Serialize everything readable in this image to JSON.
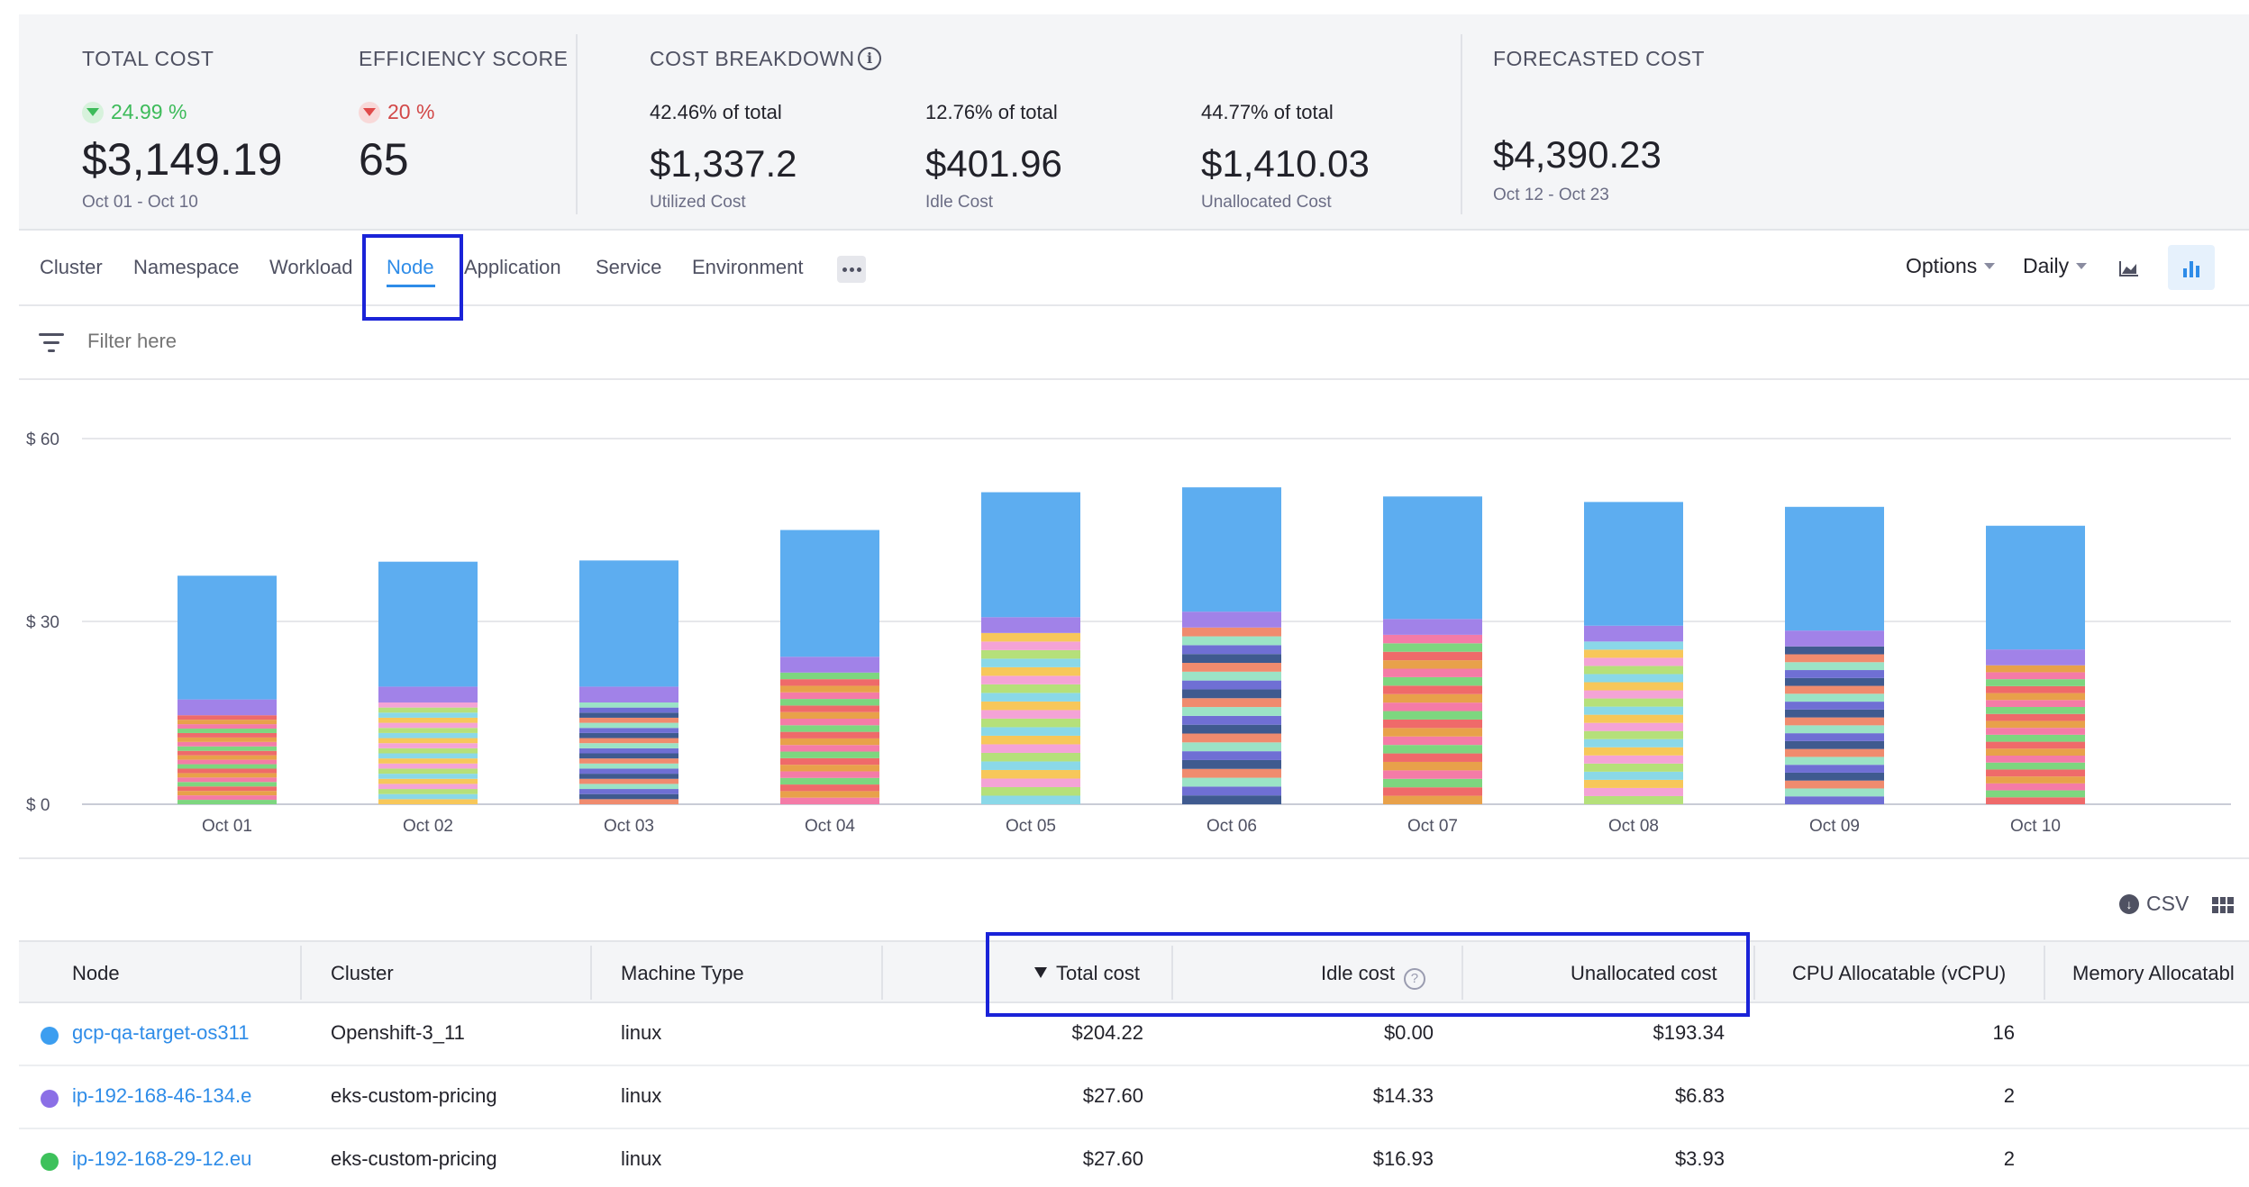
{
  "summary": {
    "total_cost": {
      "label": "TOTAL COST",
      "trend": "24.99 %",
      "trend_dir": "down",
      "value": "$3,149.19",
      "range": "Oct 01 - Oct 10"
    },
    "efficiency": {
      "label": "EFFICIENCY SCORE",
      "trend": "20 %",
      "trend_dir": "down",
      "value": "65"
    },
    "breakdown": {
      "label": "COST BREAKDOWN",
      "items": [
        {
          "pct": "42.46% of total",
          "value": "$1,337.2",
          "name": "Utilized Cost"
        },
        {
          "pct": "12.76% of total",
          "value": "$401.96",
          "name": "Idle Cost"
        },
        {
          "pct": "44.77% of total",
          "value": "$1,410.03",
          "name": "Unallocated Cost"
        }
      ]
    },
    "forecast": {
      "label": "FORECASTED COST",
      "value": "$4,390.23",
      "range": "Oct 12 - Oct 23"
    }
  },
  "tabs": [
    "Cluster",
    "Namespace",
    "Workload",
    "Node",
    "Application",
    "Service",
    "Environment"
  ],
  "active_tab": "Node",
  "controls": {
    "options": "Options",
    "period": "Daily"
  },
  "filter": {
    "placeholder": "Filter here"
  },
  "chart_data": {
    "type": "bar",
    "stacked": true,
    "categories": [
      "Oct 01",
      "Oct 02",
      "Oct 03",
      "Oct 04",
      "Oct 05",
      "Oct 06",
      "Oct 07",
      "Oct 08",
      "Oct 09",
      "Oct 10"
    ],
    "totals": [
      37.5,
      39.8,
      40.0,
      45.0,
      51.2,
      52.0,
      50.5,
      49.6,
      48.8,
      45.7
    ],
    "top_segment": [
      20.3,
      20.5,
      20.7,
      20.8,
      20.5,
      20.4,
      20.1,
      20.3,
      20.3,
      20.3
    ],
    "second_segment": [
      2.6,
      2.6,
      2.6,
      2.6,
      2.6,
      2.6,
      2.6,
      2.6,
      2.6,
      2.6
    ],
    "ylim": [
      0,
      60
    ],
    "yticks": [
      "$ 0",
      "$ 30",
      "$ 60"
    ],
    "tick_values": [
      0,
      30,
      60
    ],
    "colors": [
      "#5dadf0",
      "#a182e8",
      "#7dd67f",
      "#f7c75a",
      "#f08b6e",
      "#f47ba7",
      "#8ad8e8",
      "#3f5a8f",
      "#e8a14a",
      "#b5e07a",
      "#6f6fd4",
      "#ef6a6a",
      "#f4a3d6",
      "#9be3c6"
    ]
  },
  "table": {
    "csv_label": "CSV",
    "headers": [
      "Node",
      "Cluster",
      "Machine Type",
      "Total cost",
      "Idle cost",
      "Unallocated cost",
      "CPU Allocatable (vCPU)",
      "Memory Allocatabl"
    ],
    "rows": [
      {
        "color": "#3c9ef0",
        "node": "gcp-qa-target-os311",
        "cluster": "Openshift-3_11",
        "machine": "linux",
        "total": "$204.22",
        "idle": "$0.00",
        "unalloc": "$193.34",
        "cpu": "16"
      },
      {
        "color": "#8b6fe6",
        "node": "ip-192-168-46-134.e",
        "cluster": "eks-custom-pricing",
        "machine": "linux",
        "total": "$27.60",
        "idle": "$14.33",
        "unalloc": "$6.83",
        "cpu": "2"
      },
      {
        "color": "#3dc15b",
        "node": "ip-192-168-29-12.eu",
        "cluster": "eks-custom-pricing",
        "machine": "linux",
        "total": "$27.60",
        "idle": "$16.93",
        "unalloc": "$3.93",
        "cpu": "2"
      }
    ]
  }
}
